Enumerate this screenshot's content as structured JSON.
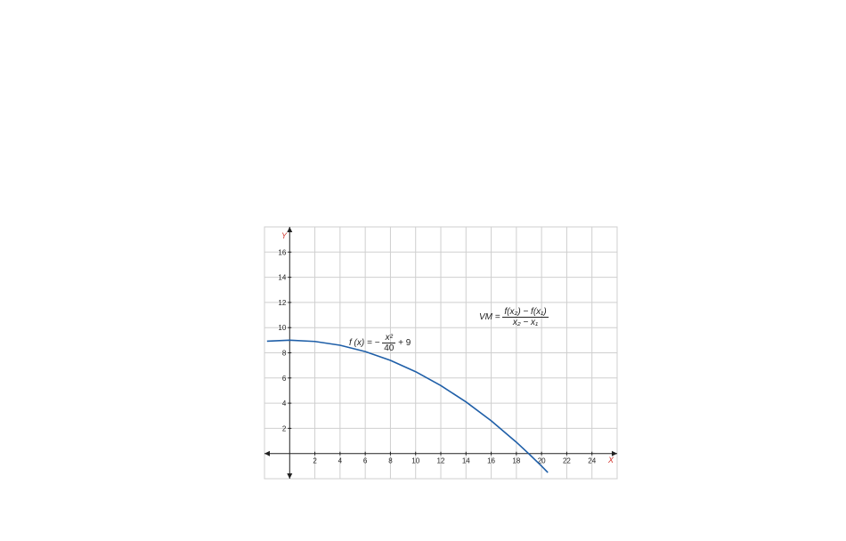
{
  "chart_data": {
    "type": "line",
    "title": "",
    "xlabel": "X",
    "ylabel": "Y",
    "xlim": [
      -2,
      26
    ],
    "ylim": [
      -2,
      18
    ],
    "x_ticks": [
      2,
      4,
      6,
      8,
      10,
      12,
      14,
      16,
      18,
      20,
      22,
      24
    ],
    "y_ticks": [
      2,
      4,
      6,
      8,
      10,
      12,
      14,
      16
    ],
    "grid": true,
    "series": [
      {
        "color": "#1f5fa8",
        "x_range": [
          -1.8,
          20.5
        ],
        "x": [
          -1.8,
          0,
          2,
          4,
          6,
          8,
          10,
          12,
          14,
          16,
          18,
          19,
          20,
          20.5
        ],
        "y": [
          8.92,
          9,
          8.9,
          8.6,
          8.1,
          7.4,
          6.5,
          5.4,
          4.1,
          2.6,
          0.9,
          -0.03,
          -1,
          -1.51
        ]
      }
    ],
    "annotations": {
      "function": {
        "lhs": "f (x) = −",
        "num": "x²",
        "den": "40",
        "rhs": "+ 9"
      },
      "vm": {
        "lhs": "VM =",
        "num": "f(x₂) − f(x₁)",
        "den": "x₂ − x₁"
      }
    }
  }
}
